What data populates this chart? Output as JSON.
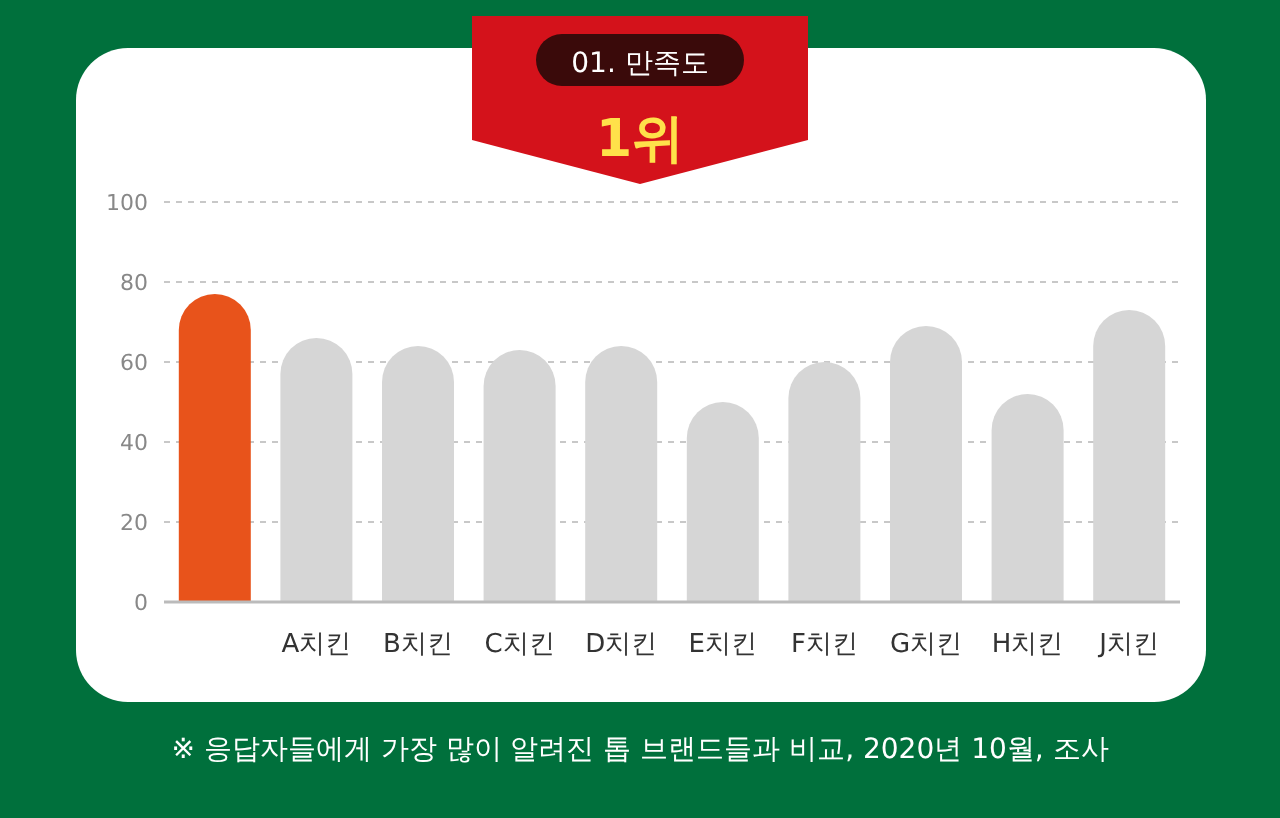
{
  "chart_data": {
    "type": "bar",
    "title": "01. 만족도",
    "subtitle": "1위",
    "categories": [
      null,
      "A치킨",
      "B치킨",
      "C치킨",
      "D치킨",
      "E치킨",
      "F치킨",
      "G치킨",
      "H치킨",
      "J치킨"
    ],
    "values": [
      77,
      66,
      64,
      63,
      64,
      50,
      60,
      69,
      52,
      73
    ],
    "colors": [
      "#e8531b",
      "#d6d6d6",
      "#d6d6d6",
      "#d6d6d6",
      "#d6d6d6",
      "#d6d6d6",
      "#d6d6d6",
      "#d6d6d6",
      "#d6d6d6",
      "#d6d6d6"
    ],
    "ylim": [
      0,
      100
    ],
    "yticks": [
      0,
      20,
      40,
      60,
      80,
      100
    ],
    "grid": "y",
    "annotations": [
      "※ 응답자들에게 가장 많이 알려진 톱 브랜드들과 비교, 2020년 10월, 조사"
    ]
  }
}
